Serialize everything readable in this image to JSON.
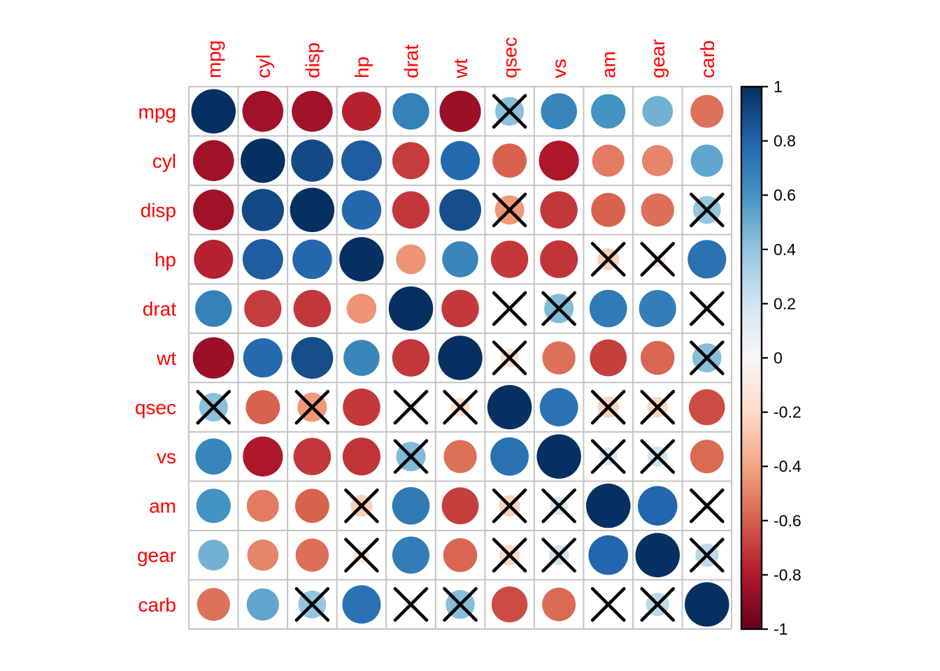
{
  "figure": {
    "background": "#ffffff",
    "title": ""
  },
  "chart_data": {
    "type": "heatmap",
    "subtype": "correlation-matrix-circles",
    "description": "Pairwise correlation matrix of mtcars variables; circle size and color encode the correlation coefficient; black X marks correlations that are not statistically significant",
    "variables": [
      "mpg",
      "cyl",
      "disp",
      "hp",
      "drat",
      "wt",
      "qsec",
      "vs",
      "am",
      "gear",
      "carb"
    ],
    "matrix": [
      [
        1.0,
        -0.852,
        -0.848,
        -0.776,
        0.681,
        -0.868,
        0.419,
        0.664,
        0.6,
        0.48,
        -0.551
      ],
      [
        -0.852,
        1.0,
        0.902,
        0.832,
        -0.7,
        0.782,
        -0.591,
        -0.811,
        -0.523,
        -0.493,
        0.527
      ],
      [
        -0.848,
        0.902,
        1.0,
        0.791,
        -0.71,
        0.888,
        -0.434,
        -0.71,
        -0.591,
        -0.556,
        0.395
      ],
      [
        -0.776,
        0.832,
        0.791,
        1.0,
        -0.449,
        0.659,
        -0.708,
        -0.723,
        -0.243,
        -0.126,
        0.75
      ],
      [
        0.681,
        -0.7,
        -0.71,
        -0.449,
        1.0,
        -0.712,
        0.091,
        0.44,
        0.713,
        0.7,
        -0.091
      ],
      [
        -0.868,
        0.782,
        0.888,
        0.659,
        -0.712,
        1.0,
        -0.175,
        -0.555,
        -0.692,
        -0.583,
        0.428
      ],
      [
        0.419,
        -0.591,
        -0.434,
        -0.708,
        0.091,
        -0.175,
        1.0,
        0.745,
        -0.23,
        -0.213,
        -0.656
      ],
      [
        0.664,
        -0.811,
        -0.71,
        -0.723,
        0.44,
        -0.555,
        0.745,
        1.0,
        0.168,
        0.206,
        -0.57
      ],
      [
        0.6,
        -0.523,
        -0.591,
        -0.243,
        0.713,
        -0.692,
        -0.23,
        0.168,
        1.0,
        0.794,
        0.058
      ],
      [
        0.48,
        -0.493,
        -0.556,
        -0.126,
        0.7,
        -0.583,
        -0.213,
        0.206,
        0.794,
        1.0,
        0.274
      ],
      [
        -0.551,
        0.527,
        0.395,
        0.75,
        -0.091,
        0.428,
        -0.656,
        -0.57,
        0.058,
        0.274,
        1.0
      ]
    ],
    "insignificant_pairs": [
      [
        "mpg",
        "qsec"
      ],
      [
        "disp",
        "qsec"
      ],
      [
        "disp",
        "carb"
      ],
      [
        "hp",
        "am"
      ],
      [
        "hp",
        "gear"
      ],
      [
        "drat",
        "qsec"
      ],
      [
        "drat",
        "vs"
      ],
      [
        "drat",
        "carb"
      ],
      [
        "wt",
        "qsec"
      ],
      [
        "wt",
        "carb"
      ],
      [
        "qsec",
        "am"
      ],
      [
        "qsec",
        "gear"
      ],
      [
        "vs",
        "am"
      ],
      [
        "vs",
        "gear"
      ],
      [
        "am",
        "carb"
      ],
      [
        "gear",
        "carb"
      ]
    ],
    "colorbar": {
      "position": "right",
      "min": -1,
      "max": 1,
      "tick_labels": [
        "1",
        "0.8",
        "0.6",
        "0.4",
        "0.2",
        "0",
        "-0.2",
        "-0.4",
        "-0.6",
        "-0.8",
        "-1"
      ],
      "tick_values": [
        1,
        0.8,
        0.6,
        0.4,
        0.2,
        0,
        -0.2,
        -0.4,
        -0.6,
        -0.8,
        -1
      ]
    },
    "palette_neg_to_pos": [
      "#67001F",
      "#B2182B",
      "#D6604D",
      "#F4A582",
      "#FDDBC7",
      "#F7F7F7",
      "#D1E5F0",
      "#92C5DE",
      "#4393C3",
      "#2166AC",
      "#053061"
    ],
    "style": {
      "variable_label_color": "#FF0000",
      "grid_color": "#C4C4C4",
      "cross_color": "#000000",
      "tick_label_color": "#000000",
      "colorbar_border_color": "#000000"
    },
    "grid": true,
    "legend_position": "right"
  }
}
